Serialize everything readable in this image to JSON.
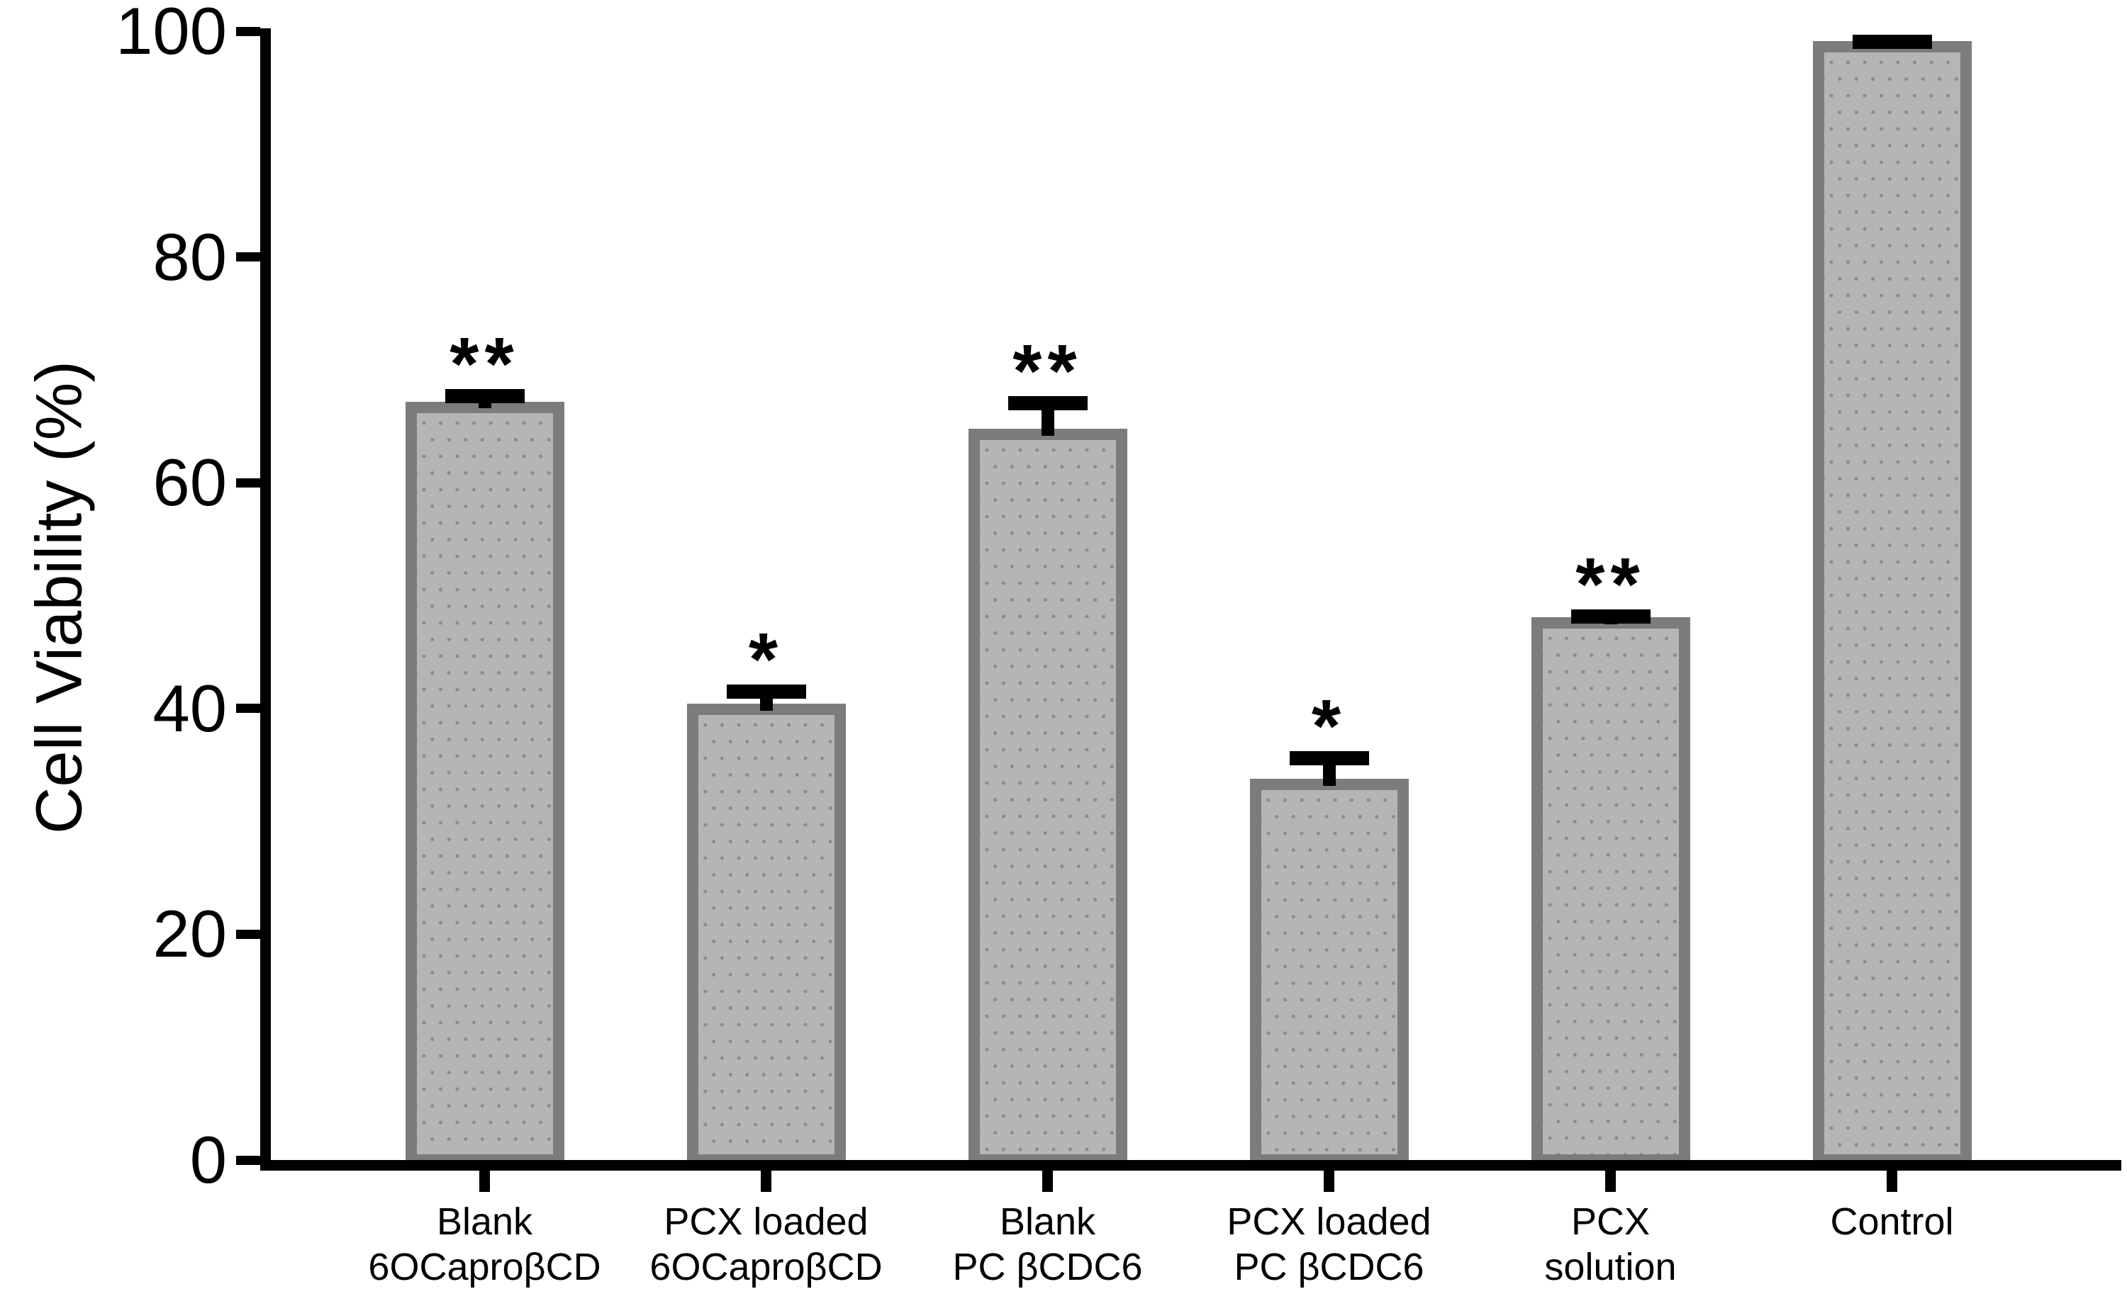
{
  "chart_data": {
    "type": "bar",
    "title": "",
    "xlabel": "",
    "ylabel": "Cell Viability (%)",
    "ylim": [
      0,
      100
    ],
    "yticks": [
      0,
      20,
      40,
      60,
      80,
      100
    ],
    "grid": false,
    "legend": null,
    "categories": [
      "Blank 6OCaproβCD",
      "PCX loaded 6OCaproβCD",
      "Blank PC βCDC6",
      "PCX loaded PC βCDC6",
      "PCX solution",
      "Control"
    ],
    "category_lines": [
      [
        "Blank",
        "6OCaproβCD"
      ],
      [
        "PCX loaded",
        "6OCaproβCD"
      ],
      [
        "Blank",
        "PC βCDC6"
      ],
      [
        "PCX loaded",
        "PC βCDC6"
      ],
      [
        "PCX",
        "solution"
      ],
      [
        "Control"
      ]
    ],
    "series": [
      {
        "name": "Cell Viability (%)",
        "values": [
          67.2,
          40.4,
          64.8,
          33.8,
          48.1,
          99.1
        ],
        "errors_plus": [
          1.1,
          1.7,
          2.9,
          2.4,
          0.7,
          0.6
        ],
        "significance": [
          "**",
          "*",
          "**",
          "*",
          "**",
          ""
        ]
      }
    ],
    "style": {
      "bar_fill": "#b4b5b7",
      "bar_border": "#7b7c7e",
      "bar_pattern": "dots",
      "dot_color": "#8b8c8e",
      "error_bar_color": "#000000",
      "axis_color": "#000000",
      "background": "#ffffff"
    }
  }
}
